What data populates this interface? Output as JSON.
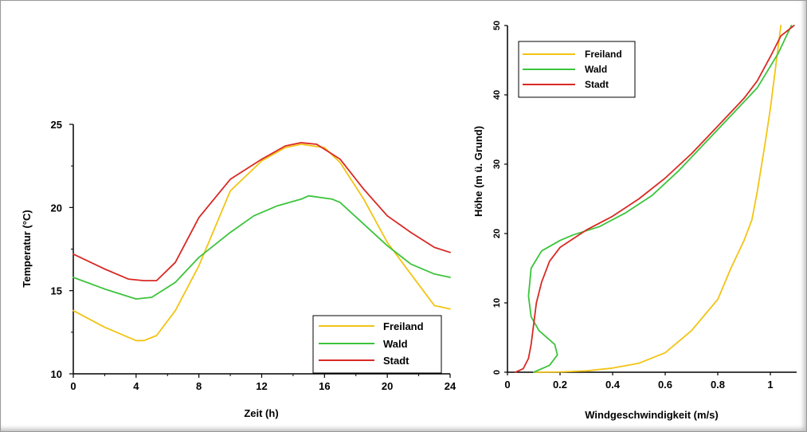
{
  "chart_data": [
    {
      "type": "line",
      "xlabel": "Zeit (h)",
      "ylabel": "Temperatur (°C)",
      "xlim": [
        0,
        24
      ],
      "ylim": [
        10,
        25
      ],
      "xticks": [
        "0",
        "4",
        "8",
        "12",
        "16",
        "20",
        "24"
      ],
      "yticks": [
        "10",
        "15",
        "20",
        "25"
      ],
      "legend_position": "bottom-right",
      "series": [
        {
          "name": "Freiland",
          "color": "#f2c414",
          "x": [
            0,
            2,
            4,
            4.5,
            5.3,
            6.5,
            8,
            10,
            12,
            13.5,
            14.5,
            16,
            17,
            18.5,
            20,
            21.5,
            23,
            24
          ],
          "y": [
            13.8,
            12.8,
            12.0,
            12.0,
            12.3,
            13.8,
            16.5,
            21.0,
            22.8,
            23.6,
            23.8,
            23.6,
            22.7,
            20.5,
            17.9,
            16.0,
            14.1,
            13.9
          ]
        },
        {
          "name": "Wald",
          "color": "#3cc43c",
          "x": [
            0,
            2,
            4,
            5,
            6.5,
            8,
            10,
            11.5,
            13,
            14.5,
            15,
            16.5,
            17,
            18.5,
            20,
            21.5,
            23,
            24
          ],
          "y": [
            15.8,
            15.1,
            14.5,
            14.6,
            15.5,
            17.0,
            18.5,
            19.5,
            20.1,
            20.5,
            20.7,
            20.5,
            20.3,
            19.0,
            17.7,
            16.6,
            16.0,
            15.8
          ]
        },
        {
          "name": "Stadt",
          "color": "#d82a24",
          "x": [
            0,
            2,
            3.5,
            4.5,
            5.3,
            6.5,
            8,
            10,
            12,
            13.5,
            14.5,
            15.5,
            17,
            18.5,
            20,
            21.5,
            23,
            24
          ],
          "y": [
            17.2,
            16.3,
            15.7,
            15.6,
            15.6,
            16.7,
            19.4,
            21.7,
            22.9,
            23.7,
            23.9,
            23.8,
            22.9,
            21.1,
            19.5,
            18.5,
            17.6,
            17.3
          ]
        }
      ]
    },
    {
      "type": "line",
      "xlabel": "Windgeschwindigkeit (m/s)",
      "ylabel": "Höhe (m ü. Grund)",
      "xlim": [
        0,
        1.1
      ],
      "ylim": [
        0,
        50
      ],
      "xticks": [
        "0",
        "0.2",
        "0.4",
        "0.6",
        "0.8",
        "1"
      ],
      "yticks": [
        "0",
        "10",
        "20",
        "30",
        "40",
        "50"
      ],
      "legend_position": "top-left",
      "series": [
        {
          "name": "Freiland",
          "color": "#f2c414",
          "x": [
            0.1,
            0.2,
            0.3,
            0.4,
            0.5,
            0.6,
            0.7,
            0.8,
            0.85,
            0.9,
            0.93,
            0.95,
            0.98,
            1.0,
            1.02,
            1.04
          ],
          "y": [
            0,
            0.05,
            0.2,
            0.6,
            1.3,
            2.8,
            6.0,
            10.5,
            15,
            19,
            22,
            26,
            33,
            38,
            44,
            50
          ]
        },
        {
          "name": "Wald",
          "color": "#3cc43c",
          "x": [
            0.1,
            0.16,
            0.19,
            0.18,
            0.12,
            0.09,
            0.08,
            0.09,
            0.13,
            0.2,
            0.25,
            0.35,
            0.45,
            0.55,
            0.65,
            0.75,
            0.85,
            0.95,
            1.03,
            1.08
          ],
          "y": [
            0,
            1,
            2.5,
            4.0,
            6.0,
            8.0,
            11,
            15,
            17.5,
            19,
            19.8,
            21,
            23,
            25.5,
            29,
            33,
            37,
            41,
            46,
            50
          ]
        },
        {
          "name": "Stadt",
          "color": "#d82a24",
          "x": [
            0.03,
            0.06,
            0.08,
            0.09,
            0.1,
            0.11,
            0.13,
            0.16,
            0.2,
            0.3,
            0.4,
            0.5,
            0.6,
            0.7,
            0.8,
            0.9,
            0.95,
            1.0,
            1.04,
            1.09
          ],
          "y": [
            0,
            0.5,
            2,
            4,
            7,
            10,
            13,
            16,
            18,
            20.5,
            22.5,
            25,
            28,
            31.5,
            35.5,
            39.5,
            42,
            45.5,
            48.5,
            50
          ]
        }
      ]
    }
  ]
}
